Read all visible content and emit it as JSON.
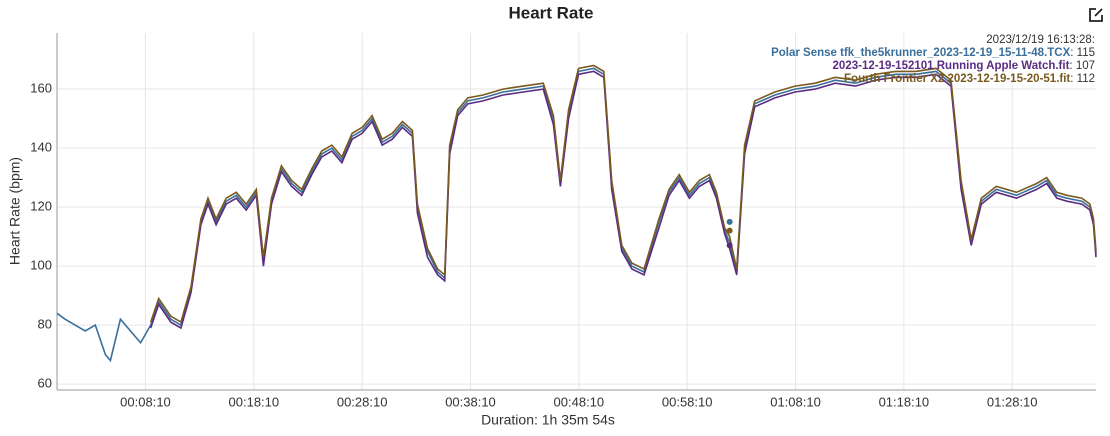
{
  "chart_data": {
    "type": "line",
    "title": "Heart Rate",
    "y_label": "Heart Rate (bpm)",
    "x_label": "Duration: 1h 35m 54s",
    "x": [
      0,
      45,
      100,
      156,
      212,
      268,
      296,
      351,
      407,
      463,
      519,
      563,
      630,
      686,
      742,
      797,
      836,
      881,
      937,
      993,
      1048,
      1104,
      1143,
      1188,
      1243,
      1299,
      1355,
      1411,
      1466,
      1522,
      1578,
      1634,
      1690,
      1745,
      1801,
      1857,
      1913,
      1968,
      1996,
      2052,
      2108,
      2147,
      2175,
      2219,
      2275,
      2359,
      2470,
      2582,
      2693,
      2749,
      2788,
      2833,
      2888,
      2972,
      3028,
      3072,
      3128,
      3184,
      3251,
      3334,
      3390,
      3446,
      3502,
      3557,
      3613,
      3652,
      3697,
      3725,
      3764,
      3808,
      3864,
      3976,
      4087,
      4199,
      4310,
      4422,
      4533,
      4645,
      4756,
      4868,
      4951,
      5007,
      5063,
      5119,
      5202,
      5314,
      5425,
      5481,
      5537,
      5593,
      5676,
      5720,
      5740,
      5754
    ],
    "series": [
      {
        "name": "Polar Sense tfk_the5krunner_2023-12-19_15-11-48.TCX",
        "color": "#3a6f9c",
        "values": [
          84,
          82,
          80,
          78,
          80,
          70,
          68,
          82,
          78,
          74,
          80,
          88,
          82,
          80,
          92,
          115,
          122,
          115,
          122,
          124,
          120,
          125,
          102,
          122,
          133,
          128,
          125,
          132,
          138,
          140,
          136,
          144,
          146,
          150,
          142,
          144,
          148,
          145,
          120,
          105,
          98,
          96,
          140,
          152,
          156,
          157,
          159,
          160,
          161,
          150,
          128,
          152,
          166,
          167,
          165,
          128,
          106,
          100,
          98,
          115,
          125,
          130,
          124,
          128,
          130,
          124,
          112,
          108,
          98,
          140,
          155,
          158,
          160,
          161,
          163,
          162,
          164,
          165,
          165,
          166,
          162,
          128,
          108,
          122,
          126,
          124,
          127,
          129,
          124,
          123,
          122,
          120,
          115,
          104
        ]
      },
      {
        "name": "2023-12-19-152101 Running Apple Watch.fit",
        "color": "#5b2c83",
        "values": [
          null,
          null,
          null,
          null,
          null,
          null,
          null,
          null,
          null,
          null,
          79,
          87,
          81,
          79,
          91,
          114,
          121,
          114,
          121,
          123,
          119,
          124,
          100,
          121,
          132,
          127,
          124,
          131,
          137,
          139,
          135,
          143,
          145,
          149,
          141,
          143,
          147,
          144,
          118,
          103,
          97,
          95,
          138,
          151,
          155,
          156,
          158,
          159,
          160,
          148,
          127,
          150,
          165,
          166,
          164,
          126,
          105,
          99,
          97,
          113,
          124,
          129,
          123,
          127,
          129,
          123,
          111,
          106,
          97,
          138,
          154,
          157,
          159,
          160,
          162,
          161,
          163,
          164,
          164,
          165,
          161,
          126,
          107,
          121,
          125,
          123,
          126,
          128,
          123,
          122,
          121,
          119,
          114,
          103
        ]
      },
      {
        "name": "Fourth Frontier X2 2023-12-19-15-20-51.fit",
        "color": "#7a5a1e",
        "values": [
          null,
          null,
          null,
          null,
          null,
          null,
          null,
          null,
          null,
          null,
          81,
          89,
          83,
          81,
          93,
          116,
          123,
          116,
          123,
          125,
          121,
          126,
          103,
          123,
          134,
          129,
          126,
          133,
          139,
          141,
          137,
          145,
          147,
          151,
          143,
          145,
          149,
          146,
          121,
          106,
          99,
          97,
          141,
          153,
          157,
          158,
          160,
          161,
          162,
          151,
          129,
          153,
          167,
          168,
          166,
          129,
          107,
          101,
          99,
          116,
          126,
          131,
          125,
          129,
          131,
          125,
          113,
          110,
          99,
          141,
          156,
          159,
          161,
          162,
          164,
          163,
          165,
          166,
          166,
          167,
          163,
          129,
          109,
          123,
          127,
          125,
          128,
          130,
          125,
          124,
          123,
          121,
          116,
          105
        ]
      }
    ],
    "xlim": [
      0,
      5754
    ],
    "ylim": [
      58,
      179
    ],
    "xticks": [
      {
        "value": 490,
        "label": "00:08:10"
      },
      {
        "value": 1090,
        "label": "00:18:10"
      },
      {
        "value": 1690,
        "label": "00:28:10"
      },
      {
        "value": 2290,
        "label": "00:38:10"
      },
      {
        "value": 2890,
        "label": "00:48:10"
      },
      {
        "value": 3490,
        "label": "00:58:10"
      },
      {
        "value": 4090,
        "label": "01:08:10"
      },
      {
        "value": 4690,
        "label": "01:18:10"
      },
      {
        "value": 5290,
        "label": "01:28:10"
      }
    ],
    "yticks": [
      60,
      80,
      100,
      120,
      140,
      160
    ],
    "grid": true,
    "tooltip": {
      "time": "2023/12/19 16:13:28:",
      "values": [
        115,
        107,
        112
      ]
    }
  }
}
